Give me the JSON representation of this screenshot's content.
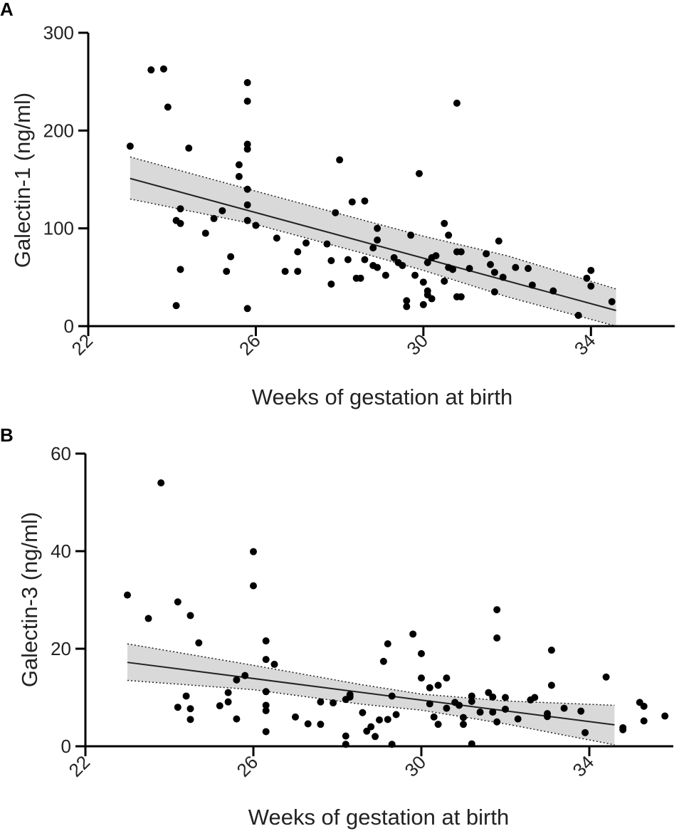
{
  "chart_data": [
    {
      "type": "scatter",
      "panel": "A",
      "xlabel": "Weeks of gestation at birth",
      "ylabel": "Galectin-1 (ng/ml)",
      "xlim": [
        22,
        36
      ],
      "ylim": [
        0,
        300
      ],
      "xticks": [
        22,
        26,
        30,
        34
      ],
      "yticks": [
        0,
        100,
        200,
        300
      ],
      "grid": false,
      "legend": "none",
      "regression": {
        "x0": 23.0,
        "y0": 151,
        "x1": 34.6,
        "y1": 16,
        "color": "#222222"
      },
      "ci_band": {
        "x": [
          23.0,
          26.0,
          28.6,
          30.0,
          32.0,
          34.6
        ],
        "upper": [
          173,
          138,
          108,
          92,
          72,
          38
        ],
        "lower": [
          130,
          104,
          74,
          57,
          30,
          0
        ],
        "fill": "#d9d9d9"
      },
      "points": [
        [
          23.0,
          184
        ],
        [
          23.5,
          262
        ],
        [
          23.8,
          263
        ],
        [
          23.9,
          224
        ],
        [
          24.1,
          108
        ],
        [
          24.1,
          21
        ],
        [
          24.2,
          120
        ],
        [
          24.2,
          105
        ],
        [
          24.2,
          58
        ],
        [
          24.4,
          182
        ],
        [
          24.8,
          95
        ],
        [
          25.0,
          110
        ],
        [
          25.2,
          118
        ],
        [
          25.3,
          56
        ],
        [
          25.4,
          71
        ],
        [
          25.6,
          165
        ],
        [
          25.6,
          153
        ],
        [
          25.8,
          249
        ],
        [
          25.8,
          230
        ],
        [
          25.8,
          186
        ],
        [
          25.8,
          181
        ],
        [
          25.8,
          140
        ],
        [
          25.8,
          124
        ],
        [
          25.8,
          108
        ],
        [
          25.8,
          18
        ],
        [
          26.0,
          103
        ],
        [
          26.5,
          90
        ],
        [
          26.7,
          56
        ],
        [
          27.0,
          56
        ],
        [
          27.0,
          76
        ],
        [
          27.2,
          85
        ],
        [
          27.7,
          84
        ],
        [
          27.8,
          67
        ],
        [
          27.8,
          43
        ],
        [
          27.9,
          116
        ],
        [
          28.0,
          170
        ],
        [
          28.2,
          68
        ],
        [
          28.3,
          127
        ],
        [
          28.4,
          49
        ],
        [
          28.5,
          49
        ],
        [
          28.6,
          68
        ],
        [
          28.6,
          128
        ],
        [
          28.8,
          80
        ],
        [
          28.8,
          62
        ],
        [
          28.9,
          100
        ],
        [
          28.9,
          88
        ],
        [
          28.9,
          60
        ],
        [
          29.1,
          52
        ],
        [
          29.3,
          70
        ],
        [
          29.4,
          65
        ],
        [
          29.5,
          62
        ],
        [
          29.6,
          26
        ],
        [
          29.6,
          20
        ],
        [
          29.7,
          93
        ],
        [
          29.8,
          52
        ],
        [
          29.9,
          156
        ],
        [
          30.0,
          45
        ],
        [
          30.0,
          22
        ],
        [
          30.1,
          65
        ],
        [
          30.1,
          36
        ],
        [
          30.1,
          32
        ],
        [
          30.2,
          28
        ],
        [
          30.2,
          70
        ],
        [
          30.3,
          72
        ],
        [
          30.5,
          105
        ],
        [
          30.5,
          46
        ],
        [
          30.6,
          93
        ],
        [
          30.6,
          60
        ],
        [
          30.7,
          58
        ],
        [
          30.8,
          76
        ],
        [
          30.8,
          30
        ],
        [
          30.8,
          228
        ],
        [
          30.9,
          30
        ],
        [
          30.9,
          76
        ],
        [
          31.1,
          59
        ],
        [
          31.5,
          74
        ],
        [
          31.6,
          63
        ],
        [
          31.7,
          35
        ],
        [
          31.7,
          55
        ],
        [
          31.8,
          87
        ],
        [
          31.9,
          50
        ],
        [
          32.2,
          60
        ],
        [
          32.5,
          59
        ],
        [
          32.6,
          42
        ],
        [
          33.1,
          36
        ],
        [
          33.7,
          11
        ],
        [
          33.9,
          49
        ],
        [
          34.0,
          57
        ],
        [
          34.0,
          41
        ],
        [
          34.5,
          25
        ]
      ]
    },
    {
      "type": "scatter",
      "panel": "B",
      "xlabel": "Weeks of gestation at birth",
      "ylabel": "Galectin-3 (ng/ml)",
      "xlim": [
        22,
        36
      ],
      "ylim": [
        0,
        60
      ],
      "xticks": [
        22,
        26,
        30,
        34
      ],
      "yticks": [
        0,
        20,
        40,
        60
      ],
      "grid": false,
      "legend": "none",
      "regression": {
        "x0": 23.0,
        "y0": 17.2,
        "x1": 34.6,
        "y1": 4.4,
        "color": "#222222"
      },
      "ci_band": {
        "x": [
          23.0,
          26.0,
          28.6,
          30.0,
          32.0,
          34.6
        ],
        "upper": [
          21.0,
          16.6,
          12.6,
          10.7,
          9.3,
          8.4
        ],
        "lower": [
          13.5,
          11.6,
          8.6,
          7.4,
          4.6,
          0.3
        ],
        "fill": "#d9d9d9"
      },
      "points": [
        [
          23.0,
          31.0
        ],
        [
          23.5,
          26.2
        ],
        [
          23.8,
          54.0
        ],
        [
          24.2,
          8.0
        ],
        [
          24.2,
          29.6
        ],
        [
          24.4,
          10.3
        ],
        [
          24.5,
          26.8
        ],
        [
          24.5,
          7.7
        ],
        [
          24.5,
          5.5
        ],
        [
          24.7,
          21.2
        ],
        [
          25.2,
          8.3
        ],
        [
          25.4,
          9.1
        ],
        [
          25.4,
          11.0
        ],
        [
          25.6,
          13.6
        ],
        [
          25.6,
          5.6
        ],
        [
          25.8,
          14.5
        ],
        [
          26.0,
          39.9
        ],
        [
          26.0,
          32.9
        ],
        [
          26.3,
          21.6
        ],
        [
          26.3,
          17.8
        ],
        [
          26.3,
          11.2
        ],
        [
          26.3,
          8.4
        ],
        [
          26.3,
          7.3
        ],
        [
          26.3,
          3.0
        ],
        [
          26.5,
          16.8
        ],
        [
          27.0,
          6.0
        ],
        [
          27.3,
          4.6
        ],
        [
          27.6,
          9.1
        ],
        [
          27.6,
          4.5
        ],
        [
          27.9,
          8.9
        ],
        [
          28.2,
          9.6
        ],
        [
          28.2,
          2.1
        ],
        [
          28.2,
          0.4
        ],
        [
          28.3,
          10.6
        ],
        [
          28.3,
          10.1
        ],
        [
          28.6,
          6.9
        ],
        [
          28.7,
          3.1
        ],
        [
          28.8,
          4.0
        ],
        [
          28.9,
          2.0
        ],
        [
          29.0,
          5.4
        ],
        [
          29.1,
          17.4
        ],
        [
          29.2,
          21.0
        ],
        [
          29.2,
          5.5
        ],
        [
          29.3,
          10.3
        ],
        [
          29.4,
          6.5
        ],
        [
          29.3,
          0.4
        ],
        [
          29.8,
          23.0
        ],
        [
          30.0,
          19.0
        ],
        [
          30.0,
          14.0
        ],
        [
          30.2,
          12.0
        ],
        [
          30.2,
          8.7
        ],
        [
          30.3,
          6.0
        ],
        [
          30.4,
          4.5
        ],
        [
          30.4,
          12.5
        ],
        [
          30.6,
          7.8
        ],
        [
          30.6,
          14.0
        ],
        [
          30.8,
          9.0
        ],
        [
          30.9,
          8.4
        ],
        [
          31.0,
          4.5
        ],
        [
          31.0,
          5.9
        ],
        [
          31.2,
          10.3
        ],
        [
          31.2,
          9.2
        ],
        [
          31.2,
          0.5
        ],
        [
          31.4,
          7.0
        ],
        [
          31.6,
          11.0
        ],
        [
          31.7,
          7.0
        ],
        [
          31.7,
          10.1
        ],
        [
          31.8,
          28.0
        ],
        [
          31.8,
          22.2
        ],
        [
          31.8,
          5.0
        ],
        [
          32.0,
          10.0
        ],
        [
          32.0,
          7.6
        ],
        [
          32.3,
          5.6
        ],
        [
          32.6,
          9.5
        ],
        [
          32.7,
          10.0
        ],
        [
          33.0,
          6.7
        ],
        [
          33.0,
          6.1
        ],
        [
          33.1,
          19.7
        ],
        [
          33.1,
          12.5
        ],
        [
          33.4,
          7.8
        ],
        [
          33.8,
          7.2
        ],
        [
          33.9,
          2.8
        ],
        [
          34.4,
          14.2
        ],
        [
          34.8,
          3.8
        ],
        [
          34.8,
          3.4
        ],
        [
          35.2,
          9.0
        ],
        [
          35.3,
          8.2
        ],
        [
          35.3,
          5.2
        ],
        [
          35.8,
          6.2
        ]
      ]
    }
  ],
  "panels": [
    {
      "letter": "A",
      "xlabel": "Weeks of gestation at birth",
      "ylabel": "Galectin-1 (ng/ml)"
    },
    {
      "letter": "B",
      "xlabel": "Weeks of gestation at birth",
      "ylabel": "Galectin-3 (ng/ml)"
    }
  ]
}
